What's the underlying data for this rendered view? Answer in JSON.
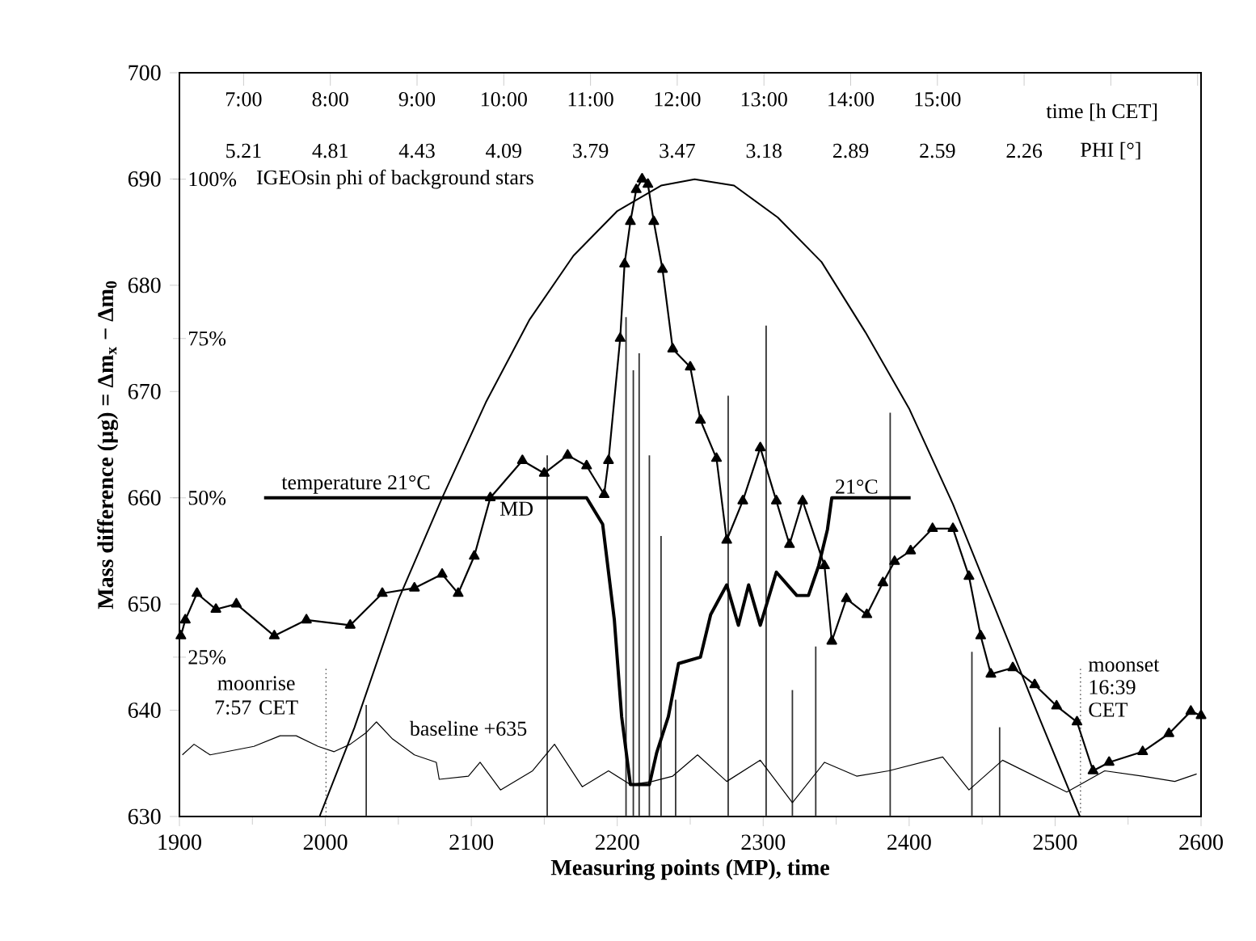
{
  "chart_data": {
    "type": "line",
    "xlabel": "Measuring points (MP), time",
    "ylabel": "**Mass difference (µg) = Δm$_{x}$ − Δm$_{0}$**",
    "y2label": "IGEOsin phi of background stars",
    "xlim": [
      1900,
      2600
    ],
    "xticks": [
      1900,
      2000,
      2100,
      2200,
      2300,
      2400,
      2500,
      2600
    ],
    "ylim": [
      630,
      700
    ],
    "yticks": [
      630,
      640,
      650,
      660,
      670,
      680,
      690,
      700
    ],
    "x2lim": [
      6.26,
      18.04
    ],
    "x2label": "time [h CET]",
    "x2ticks": [
      {
        "value": 7,
        "label": "7:00"
      },
      {
        "value": 8,
        "label": "8:00"
      },
      {
        "value": 9,
        "label": "9:00"
      },
      {
        "value": 10,
        "label": "10:00"
      },
      {
        "value": 11,
        "label": "11:00"
      },
      {
        "value": 12,
        "label": "12:00"
      },
      {
        "value": 13,
        "label": "13:00"
      },
      {
        "value": 14,
        "label": "14:00"
      },
      {
        "value": 15,
        "label": "15:00"
      },
      {
        "value": 16,
        "label": null
      },
      {
        "value": 17,
        "label": null
      },
      {
        "value": 18,
        "label": null
      }
    ],
    "y2lim": [
      0,
      116.7
    ],
    "y2ticks": [
      {
        "value": 25,
        "label": "25%"
      },
      {
        "value": 50,
        "label": "50%"
      },
      {
        "value": 75,
        "label": "75%"
      },
      {
        "value": 100,
        "label": "100%"
      }
    ],
    "grid": false,
    "series": [
      {
        "type": "bar",
        "color": "#333333",
        "x": [
          2028,
          2152,
          2206,
          2211,
          2215,
          2222,
          2230,
          2240,
          2276,
          2302,
          2320,
          2336,
          2387,
          2443,
          2462
        ],
        "values": [
          640.5,
          664,
          677,
          672,
          673.6,
          664,
          656.4,
          641,
          669.6,
          676.2,
          641.9,
          646,
          668,
          645.5,
          638.4
        ]
      },
      {
        "color": "#000000",
        "marker": "none",
        "line_style": "solid",
        "x": [
          1902,
          1910,
          1921,
          1951,
          1969,
          1980,
          1995,
          2006,
          2017,
          2028,
          2035,
          2046,
          2061,
          2076,
          2078,
          2098,
          2106,
          2120,
          2142,
          2157,
          2176,
          2194,
          2209,
          2224,
          2238,
          2255,
          2275,
          2298,
          2320,
          2342,
          2364,
          2386,
          2423,
          2441,
          2464,
          2486,
          2508,
          2534,
          2560,
          2582,
          2597
        ],
        "values": [
          635.8,
          636.8,
          635.8,
          636.6,
          637.6,
          637.6,
          636.6,
          636.1,
          636.8,
          637.9,
          638.9,
          637.3,
          635.8,
          635.1,
          633.5,
          633.8,
          635.1,
          632.5,
          634.3,
          636.8,
          632.8,
          634.3,
          633,
          633.3,
          633.8,
          635.8,
          633.3,
          635.3,
          631.3,
          635.1,
          633.8,
          634.3,
          635.6,
          632.5,
          635.3,
          633.8,
          632.3,
          634.3,
          633.8,
          633.3,
          634
        ]
      },
      {
        "color": "#000000",
        "marker": "none",
        "line_style": "solid",
        "x": [
          1958,
          2179,
          2190,
          2198,
          2203,
          2209,
          2222,
          2227,
          2235,
          2242,
          2257,
          2264,
          2275,
          2283,
          2290,
          2298,
          2309,
          2323,
          2331,
          2338,
          2344,
          2347,
          2401
        ],
        "values": [
          660,
          660,
          657.5,
          648.5,
          639.4,
          633,
          633,
          636,
          639.4,
          644.4,
          645,
          649,
          651.8,
          648,
          651.8,
          648,
          653,
          650.8,
          650.8,
          653.6,
          657,
          660,
          660
        ]
      },
      {
        "color": "#000000",
        "marker": "triangle",
        "line_style": "solid",
        "x": [
          1901,
          1904,
          1912,
          1925,
          1939,
          1965,
          1987,
          2017,
          2039,
          2061,
          2080,
          2091,
          2102,
          2113,
          2135,
          2150,
          2166,
          2179,
          2191,
          2194,
          2202,
          2205,
          2209,
          2213,
          2217,
          2221,
          2225,
          2231,
          2238,
          2250,
          2257,
          2268,
          2275,
          2286,
          2298,
          2309,
          2318,
          2327,
          2342,
          2347,
          2357,
          2371,
          2382,
          2390,
          2401,
          2416,
          2430,
          2441,
          2449,
          2456,
          2471,
          2486,
          2501,
          2515,
          2526,
          2537,
          2560,
          2578,
          2593,
          2600
        ],
        "values": [
          647,
          648.5,
          651,
          649.5,
          650,
          647,
          648.5,
          648,
          651,
          651.5,
          652.8,
          651,
          654.5,
          660,
          663.5,
          662.3,
          664,
          663,
          660.3,
          663.5,
          675,
          682,
          686,
          689,
          690,
          689.5,
          686,
          681.5,
          674,
          672.3,
          667.3,
          663.7,
          656,
          659.7,
          664.7,
          659.7,
          655.6,
          659.7,
          653.6,
          646.5,
          650.5,
          649,
          652,
          654,
          655,
          657.1,
          657.1,
          652.6,
          647,
          643.4,
          644,
          642.4,
          640.4,
          638.9,
          634.3,
          635.1,
          636.1,
          637.8,
          639.9,
          639.5
        ]
      },
      {
        "axis": "y2",
        "color": "#000000",
        "marker": "none",
        "line_style": "solid",
        "x": [
          1996,
          2020,
          2050,
          2080,
          2110,
          2140,
          2170,
          2200,
          2230,
          2253,
          2280,
          2310,
          2340,
          2370,
          2400,
          2430,
          2460,
          2490,
          2517
        ],
        "values": [
          0,
          14,
          34,
          50,
          65,
          78,
          88,
          95,
          99,
          100,
          99,
          94,
          87,
          76,
          64,
          49,
          32,
          15,
          0
        ]
      }
    ],
    "ref_lines": [
      {
        "axis": "x2",
        "value": 7.95,
        "line_style": "dotted"
      },
      {
        "axis": "x2",
        "value": 16.65,
        "line_style": "dotted"
      }
    ],
    "annotations": [
      "5.21",
      "4.81",
      "4.43",
      "4.09",
      "3.79",
      "3.47",
      "3.18",
      "2.89",
      "2.59",
      "2.26",
      "PHI [°]",
      {
        "text": "temperature 21°C",
        "x": 2021,
        "y": 660
      },
      {
        "text": "MD",
        "x": 2131,
        "y": 660
      },
      {
        "text": "21°C",
        "x": 2364,
        "y": 660
      },
      "baseline +635",
      "moonrise 7:57 CET",
      "moonset 16:39 CET"
    ]
  }
}
